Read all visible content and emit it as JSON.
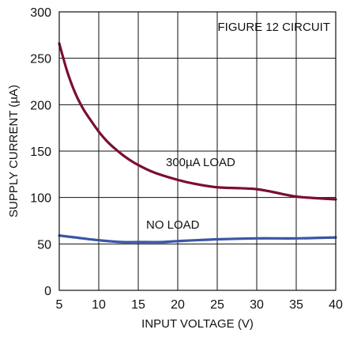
{
  "chart_data": {
    "type": "line",
    "title": "",
    "annotation": "FIGURE 12 CIRCUIT",
    "xlabel": "INPUT VOLTAGE (V)",
    "ylabel": "SUPPLY CURRENT (µA)",
    "xlim": [
      5,
      40
    ],
    "ylim": [
      0,
      300
    ],
    "x_ticks": [
      5,
      10,
      15,
      20,
      25,
      30,
      35,
      40
    ],
    "y_ticks": [
      0,
      50,
      100,
      150,
      200,
      250,
      300
    ],
    "grid": true,
    "legend": "none",
    "series": [
      {
        "name": "300µA LOAD",
        "color": "#7a0f2e",
        "x": [
          5,
          6,
          7,
          8,
          9,
          10,
          11,
          12,
          13,
          14,
          15,
          17,
          20,
          22,
          25,
          28,
          30,
          32,
          35,
          38,
          40
        ],
        "y": [
          266,
          236,
          213,
          196,
          183,
          171,
          161,
          153,
          146,
          140,
          135,
          127,
          119,
          115,
          111,
          110,
          109,
          106,
          101,
          99,
          98
        ]
      },
      {
        "name": "NO LOAD",
        "color": "#3a56a4",
        "x": [
          5,
          7,
          10,
          13,
          15,
          18,
          20,
          25,
          30,
          35,
          40
        ],
        "y": [
          59,
          57,
          54,
          52,
          52,
          52,
          53,
          55,
          56,
          56,
          57
        ]
      }
    ]
  }
}
